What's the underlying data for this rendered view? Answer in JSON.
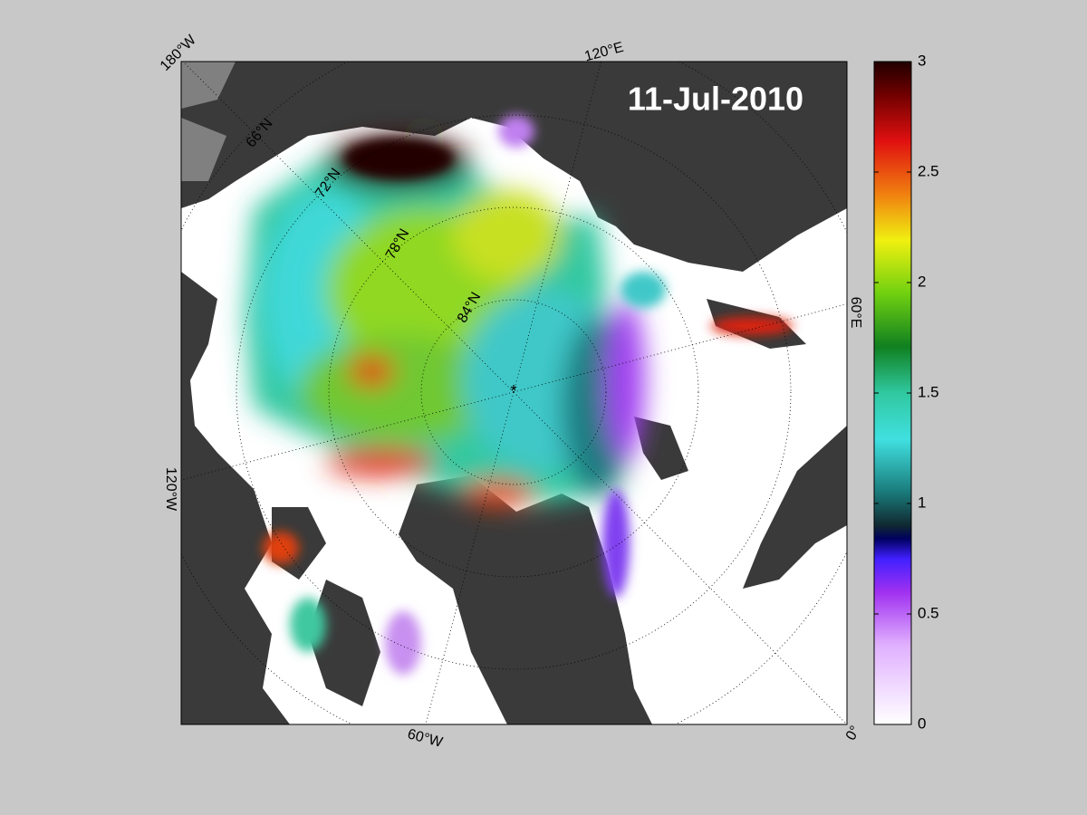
{
  "title": "11-Jul-2010",
  "meridian_labels": [
    "180°W",
    "120°E",
    "60°E",
    "0°",
    "60°W",
    "120°W"
  ],
  "parallel_labels": [
    "66°N",
    "72°N",
    "78°N",
    "84°N"
  ],
  "colorbar": {
    "lim": [
      0,
      3
    ],
    "ticks": [
      0,
      0.5,
      1,
      1.5,
      2,
      2.5,
      3
    ]
  }
}
